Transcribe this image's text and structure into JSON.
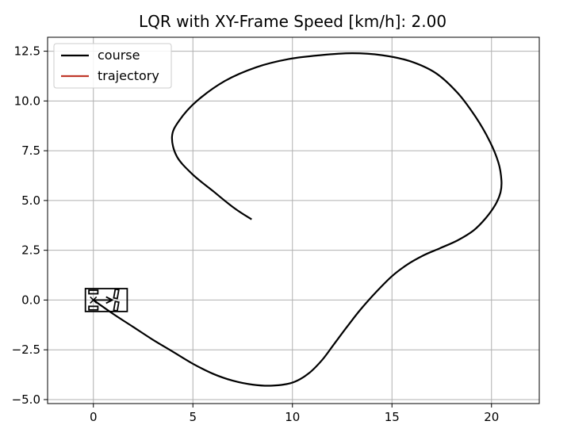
{
  "chart_data": {
    "type": "line",
    "title": "LQR with XY-Frame Speed [km/h]: 2.00",
    "xlabel": "",
    "ylabel": "",
    "xlim": [
      -2.3,
      22.4
    ],
    "ylim": [
      -5.2,
      13.2
    ],
    "xticks": [
      0,
      5,
      10,
      15,
      20
    ],
    "yticks": [
      -5.0,
      -2.5,
      0.0,
      2.5,
      5.0,
      7.5,
      10.0,
      12.5
    ],
    "xtick_labels": [
      "0",
      "5",
      "10",
      "15",
      "20"
    ],
    "ytick_labels": [
      "−5.0",
      "−2.5",
      "0.0",
      "2.5",
      "5.0",
      "7.5",
      "10.0",
      "12.5"
    ],
    "grid": true,
    "legend_position": "upper-left",
    "series": [
      {
        "name": "course",
        "color": "#000000",
        "x": [
          0.0,
          1.0,
          2.0,
          3.0,
          4.0,
          5.0,
          6.0,
          7.0,
          8.0,
          9.0,
          10.0,
          10.8,
          11.5,
          12.1,
          12.7,
          13.4,
          14.2,
          15.0,
          15.8,
          16.6,
          17.4,
          18.3,
          19.1,
          19.7,
          20.2,
          20.45,
          20.5,
          20.35,
          19.9,
          19.2,
          18.3,
          17.2,
          15.9,
          14.5,
          13.0,
          11.4,
          9.8,
          8.2,
          6.6,
          5.2,
          4.3,
          3.95,
          4.2,
          5.0,
          6.1,
          7.1,
          7.95
        ],
        "y": [
          0.0,
          -0.7,
          -1.35,
          -2.0,
          -2.6,
          -3.2,
          -3.7,
          -4.05,
          -4.25,
          -4.3,
          -4.15,
          -3.7,
          -3.0,
          -2.2,
          -1.4,
          -0.5,
          0.4,
          1.2,
          1.8,
          2.25,
          2.6,
          3.0,
          3.5,
          4.1,
          4.8,
          5.4,
          6.0,
          6.9,
          8.0,
          9.2,
          10.4,
          11.4,
          12.0,
          12.3,
          12.4,
          12.3,
          12.1,
          11.7,
          11.0,
          10.0,
          9.0,
          8.2,
          7.2,
          6.3,
          5.4,
          4.6,
          4.05
        ]
      },
      {
        "name": "trajectory",
        "color": "#c0392b",
        "x": [],
        "y": []
      }
    ],
    "vehicle": {
      "x": 0.0,
      "y": 0.0,
      "yaw_deg": 0,
      "length": 2.1,
      "width": 1.15,
      "rear_overhang": 0.4
    }
  }
}
